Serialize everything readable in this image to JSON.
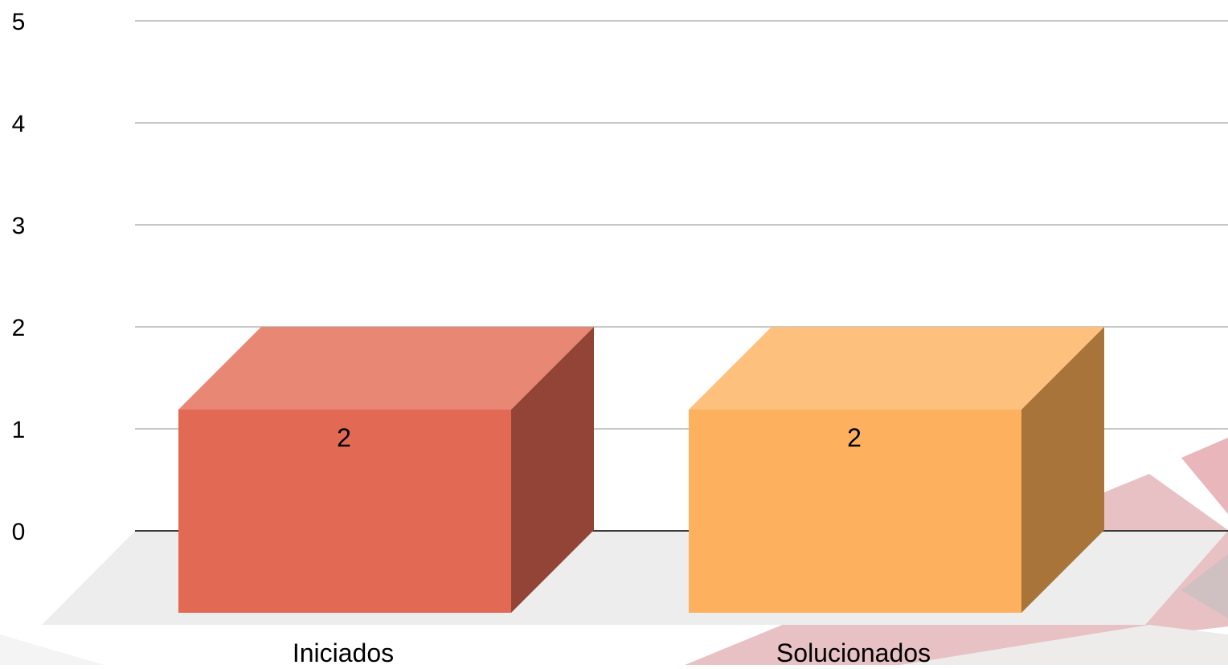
{
  "chart_data": {
    "type": "bar",
    "style": "3d",
    "categories": [
      "Iniciados",
      "Solucionados"
    ],
    "values": [
      2,
      2
    ],
    "data_labels": [
      "2",
      "2"
    ],
    "ylim": [
      0,
      5
    ],
    "yticks": [
      "0",
      "1",
      "2",
      "3",
      "4",
      "5"
    ],
    "title": "",
    "xlabel": "",
    "ylabel": "",
    "grid": true,
    "colors": {
      "bars": [
        "#e26953",
        "#fdb05d"
      ],
      "bar_tops": [
        "#e88773",
        "#fec07d"
      ],
      "bar_sides": [
        "#944437",
        "#a87439"
      ],
      "floor": "#ededee",
      "grid": "#c8c8c8",
      "axis": "#3c3c3c"
    }
  }
}
